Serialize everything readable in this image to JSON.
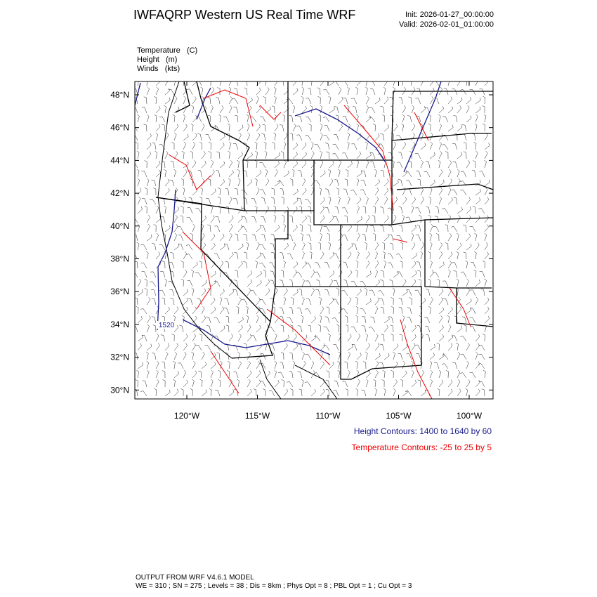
{
  "header": {
    "title": "IWFAQRP Western US Real Time WRF",
    "init": "Init: 2026-01-27_00:00:00",
    "valid": "Valid: 2026-02-01_01:00:00"
  },
  "fields": [
    "Temperature   (C)",
    "Height   (m)",
    "Winds   (kts)"
  ],
  "axes": {
    "lat_labels": [
      "48°N",
      "46°N",
      "44°N",
      "42°N",
      "40°N",
      "38°N",
      "36°N",
      "34°N",
      "32°N",
      "30°N"
    ],
    "lon_labels": [
      "120°W",
      "115°W",
      "110°W",
      "105°W",
      "100°W"
    ]
  },
  "contour_labels": [
    "1520"
  ],
  "legend": {
    "height": "Height Contours: 1400 to 1640 by 60",
    "temperature": "Temperature Contours: -25 to 25 by 5"
  },
  "footer": [
    "OUTPUT FROM WRF V4.6.1 MODEL",
    "WE = 310 ; SN = 275 ; Levels = 38 ; Dis = 8km ; Phys Opt = 8 ; PBL Opt = 1 ; Cu Opt = 3"
  ]
}
